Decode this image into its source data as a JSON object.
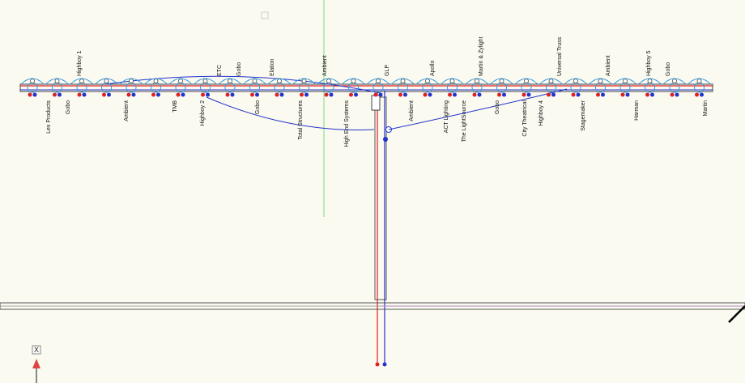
{
  "labels_above": [
    "Highboy 1",
    "ETC",
    "Gobo",
    "Elation",
    "Ambient",
    "GLP",
    "Apollo",
    "Martin & Zylight",
    "Universal Truss",
    "Ambient",
    "Highboy 5",
    "Gobo"
  ],
  "labels_below": [
    "Lex Products",
    "Gobo",
    "Ambient",
    "TMB",
    "Highboy 2",
    "Gobo",
    "Total Structures",
    "High End Systems",
    "Ambient",
    "ACT Lighting",
    "The LightSource",
    "Gobo",
    "City Theatrical",
    "Highboy 4",
    "Stagemaker",
    "Harman",
    "Martin"
  ],
  "axis_indicator": "X"
}
